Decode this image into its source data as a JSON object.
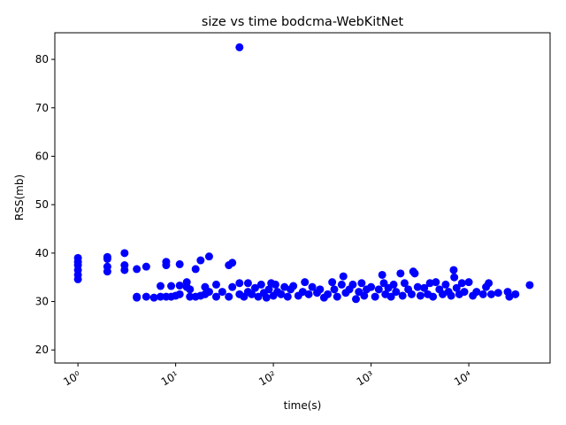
{
  "chart_data": {
    "type": "scatter",
    "title": "size vs time bodcma-WebKitNet",
    "x_label": "time(s)",
    "y_label": "RSS(mb)",
    "color": "#0000ff",
    "x_log": true,
    "xlim": [
      0.58,
      67900
    ],
    "ylim": [
      17.3,
      85.5
    ],
    "xticks": [
      {
        "value": 1,
        "label": "10⁰"
      },
      {
        "value": 10,
        "label": "10¹"
      },
      {
        "value": 100,
        "label": "10²"
      },
      {
        "value": 1000,
        "label": "10³"
      },
      {
        "value": 10000,
        "label": "10⁴"
      }
    ],
    "yticks": [
      20,
      30,
      40,
      50,
      60,
      70,
      80
    ],
    "series": [
      {
        "name": "RSS",
        "color": "#0000ff",
        "x": [
          1,
          1,
          1,
          1,
          1,
          1,
          2,
          2,
          2,
          2,
          3,
          3,
          3,
          4,
          4,
          4,
          5,
          5,
          6,
          7,
          7,
          8,
          8,
          8,
          9,
          9,
          10,
          11,
          11,
          11,
          13,
          13,
          14,
          14,
          16,
          16,
          18,
          18,
          20,
          20,
          22,
          22,
          26,
          26,
          30,
          35,
          35,
          38,
          38,
          45,
          45,
          45,
          50,
          55,
          55,
          60,
          65,
          70,
          75,
          80,
          85,
          90,
          95,
          100,
          105,
          110,
          120,
          130,
          140,
          150,
          160,
          180,
          200,
          210,
          230,
          250,
          280,
          300,
          330,
          360,
          400,
          420,
          450,
          500,
          520,
          550,
          600,
          650,
          700,
          750,
          800,
          850,
          900,
          1000,
          1100,
          1200,
          1300,
          1350,
          1400,
          1500,
          1600,
          1700,
          1800,
          2000,
          2100,
          2200,
          2400,
          2600,
          2700,
          2800,
          3000,
          3200,
          3500,
          3800,
          4000,
          4300,
          4600,
          5000,
          5400,
          5800,
          6200,
          6600,
          7000,
          7100,
          7500,
          8000,
          8500,
          9000,
          10000,
          11000,
          12000,
          14000,
          15000,
          16000,
          17000,
          20000,
          25000,
          26000,
          30000,
          42000
        ],
        "values": [
          34.6,
          35.5,
          36.5,
          37.5,
          38.2,
          39,
          36.2,
          37.2,
          38.8,
          39.2,
          36.5,
          37.5,
          40,
          31,
          36.7,
          30.8,
          31,
          37.2,
          30.8,
          31,
          33.2,
          31,
          37.5,
          38.2,
          31,
          33.2,
          31.2,
          37.7,
          33.3,
          31.5,
          34,
          33,
          32.5,
          31,
          36.7,
          31,
          38.5,
          31.2,
          33,
          31.5,
          39.3,
          32,
          33.5,
          31,
          32,
          37.5,
          31,
          38,
          33,
          82.5,
          33.8,
          31.5,
          31,
          33.8,
          32,
          31.5,
          32.8,
          31,
          33.5,
          31.8,
          30.8,
          32.5,
          33.8,
          31.2,
          33.5,
          32,
          31.5,
          33,
          31,
          32.5,
          33.2,
          31.2,
          32,
          34,
          31.5,
          33,
          31.8,
          32.5,
          30.8,
          31.5,
          34,
          32.5,
          31,
          33.5,
          35.2,
          31.8,
          32.5,
          33.5,
          30.5,
          32,
          33.8,
          31.2,
          32.5,
          33,
          31,
          32.5,
          35.5,
          33.8,
          31.5,
          32.8,
          31,
          33.5,
          32,
          35.8,
          31.2,
          33.8,
          32.5,
          31.5,
          36.2,
          35.8,
          33,
          31.2,
          32.8,
          31.5,
          33.8,
          31,
          34,
          32.5,
          31.5,
          33.5,
          32,
          31.2,
          36.5,
          35,
          32.8,
          31.5,
          33.8,
          32,
          34,
          31.2,
          32,
          31.5,
          33,
          33.8,
          31.5,
          31.8,
          32,
          31,
          31.5,
          33.4
        ]
      }
    ]
  }
}
